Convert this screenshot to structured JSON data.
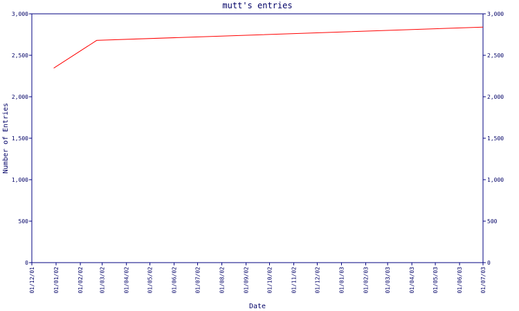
{
  "chart_data": {
    "type": "line",
    "title": "mutt's entries",
    "x_label": "Date",
    "y_label": "Number of Entries",
    "x": [
      "29/12/01",
      "22/02/02",
      "01/07/03"
    ],
    "series": [
      {
        "name": "entries",
        "color": "#ff0000",
        "values": [
          2345,
          2680,
          2840
        ]
      }
    ],
    "xlim": [
      "01/12/01",
      "01/07/03"
    ],
    "xticks": [
      "01/12/01",
      "01/01/02",
      "01/02/02",
      "01/03/02",
      "01/04/02",
      "01/05/02",
      "01/06/02",
      "01/07/02",
      "01/08/02",
      "01/09/02",
      "01/10/02",
      "01/11/02",
      "01/12/02",
      "01/01/03",
      "01/02/03",
      "01/03/03",
      "01/04/03",
      "01/05/03",
      "01/06/03",
      "01/07/03"
    ],
    "ylim": [
      0,
      3000
    ],
    "yticks": [
      0,
      500,
      {
        "value": 1000,
        "label": "1,000"
      },
      {
        "value": 1500,
        "label": "1,500"
      },
      {
        "value": 2000,
        "label": "2,000"
      },
      {
        "value": 2500,
        "label": "2,500"
      },
      {
        "value": 3000,
        "label": "3,000"
      }
    ],
    "axis_color": "#000080"
  }
}
